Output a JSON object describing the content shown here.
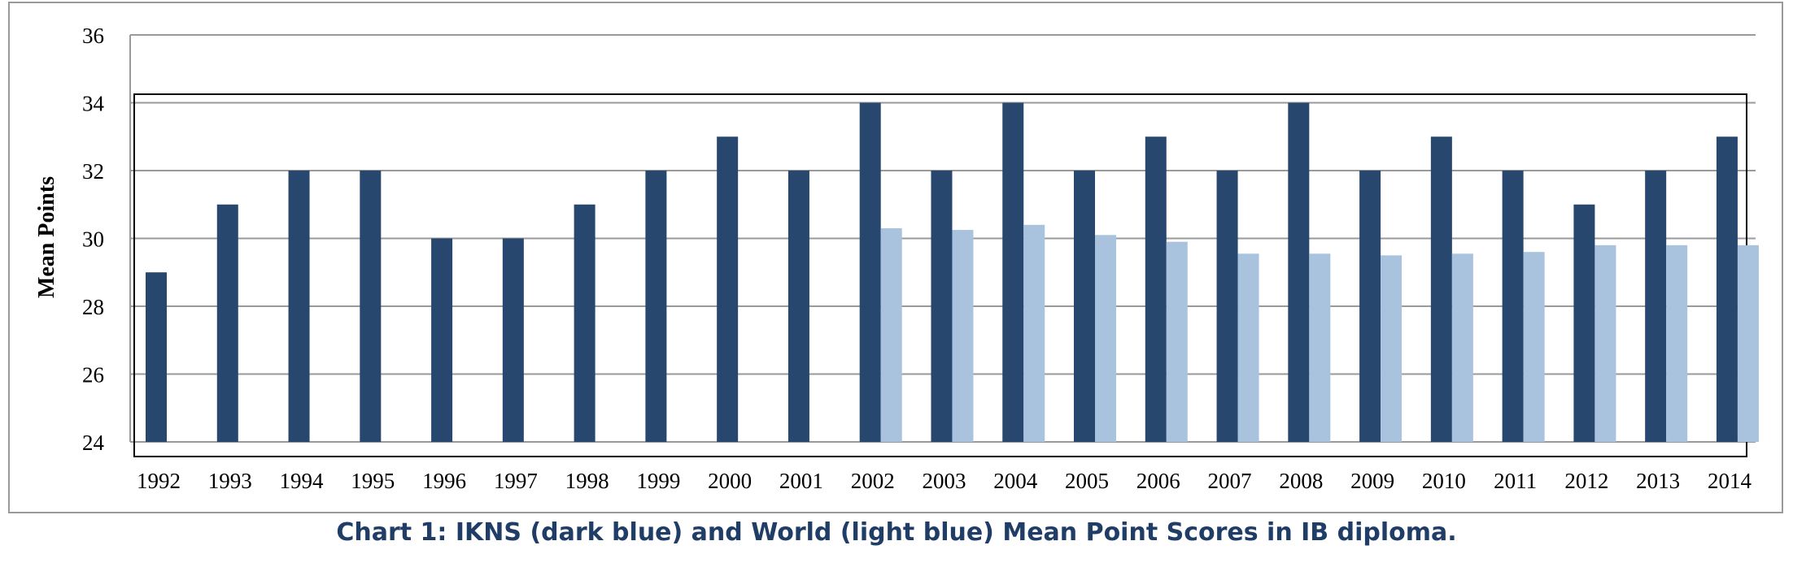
{
  "caption": "Chart 1:  IKNS (dark blue) and World (light blue) Mean Point Scores in IB diploma.",
  "chart_data": {
    "type": "bar",
    "title": "",
    "xlabel": "",
    "ylabel": "Mean Points",
    "ylim": [
      24,
      36
    ],
    "y_ticks": [
      "24",
      "26",
      "28",
      "30",
      "32",
      "34",
      "36"
    ],
    "grid": true,
    "categories": [
      "1992",
      "1993",
      "1994",
      "1995",
      "1996",
      "1997",
      "1998",
      "1999",
      "2000",
      "2001",
      "2002",
      "2003",
      "2004",
      "2005",
      "2006",
      "2007",
      "2008",
      "2009",
      "2010",
      "2011",
      "2012",
      "2013",
      "2014"
    ],
    "series": [
      {
        "color": "#27476f",
        "values": [
          29,
          31,
          32,
          32,
          30,
          30,
          31,
          32,
          33,
          32,
          34,
          32,
          34,
          32,
          33,
          32,
          34,
          32,
          33,
          32,
          31,
          32,
          33
        ]
      },
      {
        "color": "#a9c2de",
        "values": [
          null,
          null,
          null,
          null,
          null,
          null,
          null,
          null,
          null,
          null,
          30.3,
          30.25,
          30.4,
          30.1,
          29.9,
          29.55,
          29.55,
          29.5,
          29.55,
          29.6,
          29.8,
          29.8,
          29.8
        ]
      }
    ]
  }
}
